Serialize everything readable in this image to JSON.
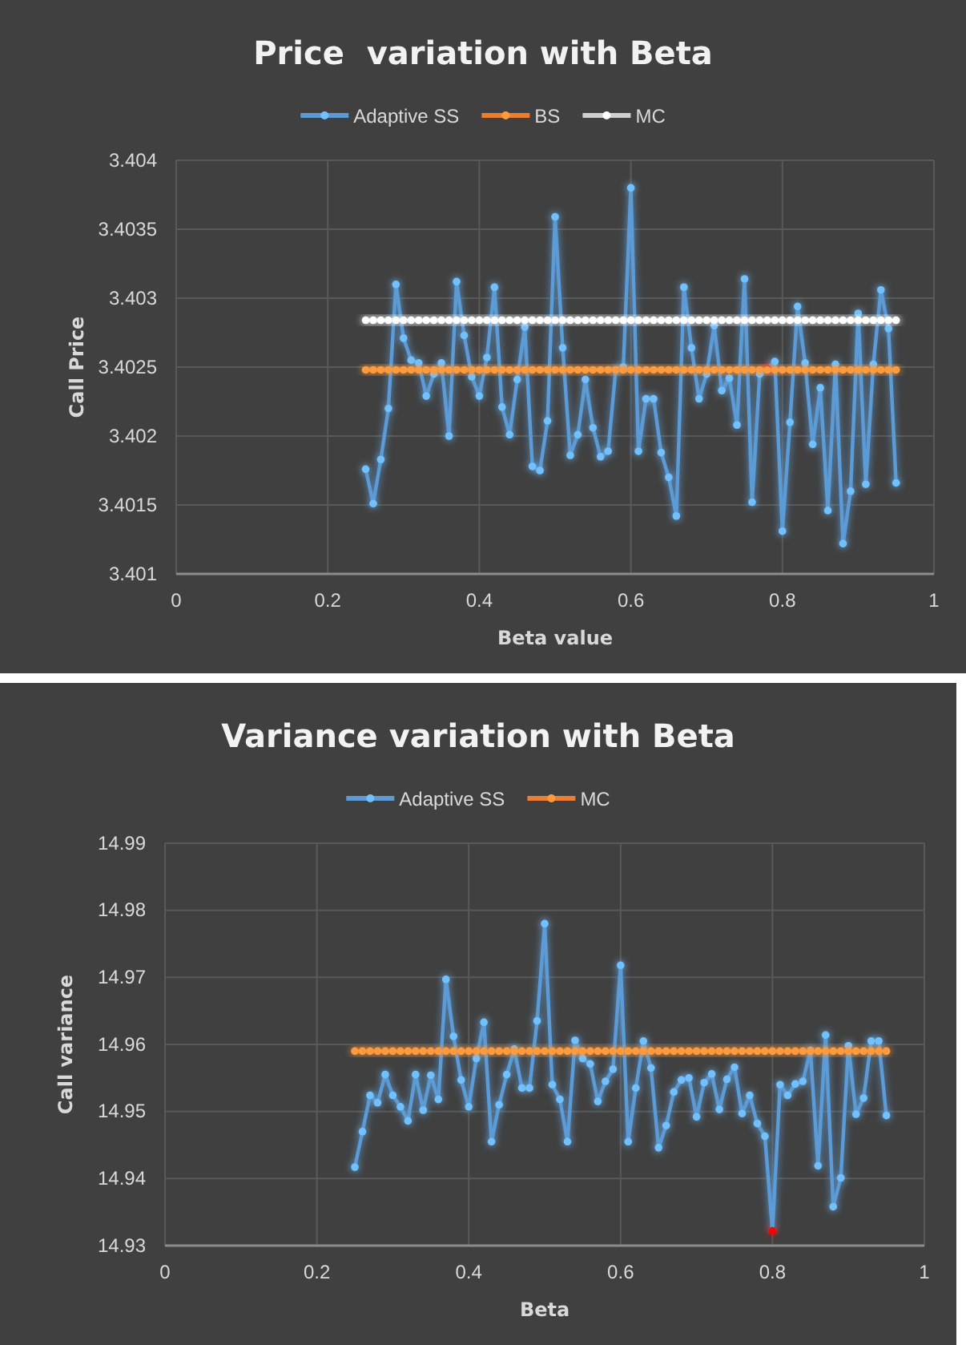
{
  "chart_data": [
    {
      "type": "line",
      "title": "Price  variation with Beta",
      "xlabel": "Beta value",
      "ylabel": "Call Price",
      "legend": "top",
      "grid": true,
      "marker": "circle",
      "line_style": "solid",
      "x": [
        0.25,
        0.26,
        0.27,
        0.28,
        0.29,
        0.3,
        0.31,
        0.32,
        0.33,
        0.34,
        0.35,
        0.36,
        0.37,
        0.38,
        0.39,
        0.4,
        0.41,
        0.42,
        0.43,
        0.44,
        0.45,
        0.46,
        0.47,
        0.48,
        0.49,
        0.5,
        0.51,
        0.52,
        0.53,
        0.54,
        0.55,
        0.56,
        0.57,
        0.58,
        0.59,
        0.6,
        0.61,
        0.62,
        0.63,
        0.64,
        0.65,
        0.66,
        0.67,
        0.68,
        0.69,
        0.7,
        0.71,
        0.72,
        0.73,
        0.74,
        0.75,
        0.76,
        0.77,
        0.78,
        0.79,
        0.8,
        0.81,
        0.82,
        0.83,
        0.84,
        0.85,
        0.86,
        0.87,
        0.88,
        0.89,
        0.9,
        0.91,
        0.92,
        0.93,
        0.94,
        0.95
      ],
      "xlim": [
        0,
        1
      ],
      "xticks": [
        0,
        0.2,
        0.4,
        0.6,
        0.8,
        1
      ],
      "ylim": [
        3.401,
        3.404
      ],
      "yticks": [
        3.401,
        3.4015,
        3.402,
        3.4025,
        3.403,
        3.4035,
        3.404
      ],
      "series": [
        {
          "name": "Adaptive SS",
          "color": "#5b9bd5",
          "values": [
            3.40176,
            3.40151,
            3.40183,
            3.4022,
            3.4031,
            3.40271,
            3.40255,
            3.40253,
            3.40229,
            3.40245,
            3.40253,
            3.402,
            3.40312,
            3.40273,
            3.40243,
            3.40229,
            3.40257,
            3.40308,
            3.40221,
            3.40201,
            3.40241,
            3.40279,
            3.40178,
            3.40175,
            3.40211,
            3.40359,
            3.40264,
            3.40186,
            3.40201,
            3.40241,
            3.40206,
            3.40185,
            3.40189,
            3.40248,
            3.4025,
            3.4038,
            3.40189,
            3.40227,
            3.40227,
            3.40188,
            3.4017,
            3.40142,
            3.40308,
            3.40264,
            3.40227,
            3.40245,
            3.4028,
            3.40233,
            3.40242,
            3.40208,
            3.40314,
            3.40152,
            3.40245,
            3.40249,
            3.40254,
            3.40131,
            3.4021,
            3.40294,
            3.40253,
            3.40194,
            3.40235,
            3.40146,
            3.40252,
            3.40122,
            3.4016,
            3.40289,
            3.40165,
            3.40252,
            3.40306,
            3.40278,
            3.40166
          ],
          "colors": [
            null,
            null,
            null,
            null,
            null,
            null,
            null,
            null,
            null,
            null,
            null,
            null,
            null,
            null,
            null,
            null,
            null,
            null,
            null,
            null,
            null,
            null,
            null,
            null,
            null,
            null,
            null,
            null,
            null,
            null,
            null,
            null,
            null,
            null,
            null,
            null,
            null,
            null,
            null,
            null,
            null,
            null,
            null,
            null,
            null,
            null,
            null,
            null,
            null,
            null,
            null,
            null,
            null,
            "#ff0000",
            null,
            null,
            null,
            null,
            null,
            null,
            null,
            null,
            null,
            null,
            null,
            null,
            null,
            null,
            null,
            null,
            null
          ]
        },
        {
          "name": "BS",
          "color": "#ed7d31",
          "values": [
            3.40248,
            3.40248,
            3.40248,
            3.40248,
            3.40248,
            3.40248,
            3.40248,
            3.40248,
            3.40248,
            3.40248,
            3.40248,
            3.40248,
            3.40248,
            3.40248,
            3.40248,
            3.40248,
            3.40248,
            3.40248,
            3.40248,
            3.40248,
            3.40248,
            3.40248,
            3.40248,
            3.40248,
            3.40248,
            3.40248,
            3.40248,
            3.40248,
            3.40248,
            3.40248,
            3.40248,
            3.40248,
            3.40248,
            3.40248,
            3.40248,
            3.40248,
            3.40248,
            3.40248,
            3.40248,
            3.40248,
            3.40248,
            3.40248,
            3.40248,
            3.40248,
            3.40248,
            3.40248,
            3.40248,
            3.40248,
            3.40248,
            3.40248,
            3.40248,
            3.40248,
            3.40248,
            3.40248,
            3.40248,
            3.40248,
            3.40248,
            3.40248,
            3.40248,
            3.40248,
            3.40248,
            3.40248,
            3.40248,
            3.40248,
            3.40248,
            3.40248,
            3.40248,
            3.40248,
            3.40248,
            3.40248,
            3.40248
          ]
        },
        {
          "name": "MC",
          "color": "#d0d0d0",
          "values": [
            3.40284,
            3.40284,
            3.40284,
            3.40284,
            3.40284,
            3.40284,
            3.40284,
            3.40284,
            3.40284,
            3.40284,
            3.40284,
            3.40284,
            3.40284,
            3.40284,
            3.40284,
            3.40284,
            3.40284,
            3.40284,
            3.40284,
            3.40284,
            3.40284,
            3.40284,
            3.40284,
            3.40284,
            3.40284,
            3.40284,
            3.40284,
            3.40284,
            3.40284,
            3.40284,
            3.40284,
            3.40284,
            3.40284,
            3.40284,
            3.40284,
            3.40284,
            3.40284,
            3.40284,
            3.40284,
            3.40284,
            3.40284,
            3.40284,
            3.40284,
            3.40284,
            3.40284,
            3.40284,
            3.40284,
            3.40284,
            3.40284,
            3.40284,
            3.40284,
            3.40284,
            3.40284,
            3.40284,
            3.40284,
            3.40284,
            3.40284,
            3.40284,
            3.40284,
            3.40284,
            3.40284,
            3.40284,
            3.40284,
            3.40284,
            3.40284,
            3.40284,
            3.40284,
            3.40284,
            3.40284,
            3.40284,
            3.40284
          ]
        }
      ]
    },
    {
      "type": "line",
      "title": "Variance variation with Beta",
      "xlabel": "Beta",
      "ylabel": "Call variance",
      "legend": "top",
      "grid": true,
      "marker": "circle",
      "line_style": "solid",
      "x": [
        0.25,
        0.26,
        0.27,
        0.28,
        0.29,
        0.3,
        0.31,
        0.32,
        0.33,
        0.34,
        0.35,
        0.36,
        0.37,
        0.38,
        0.39,
        0.4,
        0.41,
        0.42,
        0.43,
        0.44,
        0.45,
        0.46,
        0.47,
        0.48,
        0.49,
        0.5,
        0.51,
        0.52,
        0.53,
        0.54,
        0.55,
        0.56,
        0.57,
        0.58,
        0.59,
        0.6,
        0.61,
        0.62,
        0.63,
        0.64,
        0.65,
        0.66,
        0.67,
        0.68,
        0.69,
        0.7,
        0.71,
        0.72,
        0.73,
        0.74,
        0.75,
        0.76,
        0.77,
        0.78,
        0.79,
        0.8,
        0.81,
        0.82,
        0.83,
        0.84,
        0.85,
        0.86,
        0.87,
        0.88,
        0.89,
        0.9,
        0.91,
        0.92,
        0.93,
        0.94,
        0.95
      ],
      "xlim": [
        0,
        1
      ],
      "xticks": [
        0,
        0.2,
        0.4,
        0.6,
        0.8,
        1
      ],
      "ylim": [
        14.93,
        14.99
      ],
      "yticks": [
        14.93,
        14.94,
        14.95,
        14.96,
        14.97,
        14.98,
        14.99
      ],
      "series": [
        {
          "name": "Adaptive SS",
          "color": "#5b9bd5",
          "values": [
            14.9417,
            14.947,
            14.9524,
            14.9513,
            14.9555,
            14.9524,
            14.9507,
            14.9486,
            14.9555,
            14.9502,
            14.9554,
            14.9518,
            14.9697,
            14.9612,
            14.9547,
            14.9507,
            14.9579,
            14.9633,
            14.9455,
            14.951,
            14.9555,
            14.9593,
            14.9535,
            14.9535,
            14.9635,
            14.978,
            14.954,
            14.9518,
            14.9455,
            14.9606,
            14.9579,
            14.9571,
            14.9515,
            14.9545,
            14.9563,
            14.9718,
            14.9455,
            14.9535,
            14.9605,
            14.9565,
            14.9446,
            14.9479,
            14.9529,
            14.9547,
            14.955,
            14.9492,
            14.9543,
            14.9556,
            14.9503,
            14.9548,
            14.9566,
            14.9497,
            14.9524,
            14.9482,
            14.9463,
            14.9322,
            14.954,
            14.9524,
            14.9541,
            14.9545,
            14.9591,
            14.9419,
            14.9614,
            14.9358,
            14.9401,
            14.9598,
            14.9496,
            14.952,
            14.9605,
            14.9605,
            14.9494
          ],
          "colors": [
            null,
            null,
            null,
            null,
            null,
            null,
            null,
            null,
            null,
            null,
            null,
            null,
            null,
            null,
            null,
            null,
            null,
            null,
            null,
            null,
            null,
            null,
            null,
            null,
            null,
            null,
            null,
            null,
            null,
            null,
            null,
            null,
            null,
            null,
            null,
            null,
            null,
            null,
            null,
            null,
            null,
            null,
            null,
            null,
            null,
            null,
            null,
            null,
            null,
            null,
            null,
            null,
            null,
            null,
            null,
            "#ff0000",
            null,
            null,
            null,
            null,
            null,
            null,
            null,
            null,
            null,
            null,
            null,
            null,
            null,
            null,
            null
          ]
        },
        {
          "name": "MC",
          "color": "#ed7d31",
          "values": [
            14.959,
            14.959,
            14.959,
            14.959,
            14.959,
            14.959,
            14.959,
            14.959,
            14.959,
            14.959,
            14.959,
            14.959,
            14.959,
            14.959,
            14.959,
            14.959,
            14.959,
            14.959,
            14.959,
            14.959,
            14.959,
            14.959,
            14.959,
            14.959,
            14.959,
            14.959,
            14.959,
            14.959,
            14.959,
            14.959,
            14.959,
            14.959,
            14.959,
            14.959,
            14.959,
            14.959,
            14.959,
            14.959,
            14.959,
            14.959,
            14.959,
            14.959,
            14.959,
            14.959,
            14.959,
            14.959,
            14.959,
            14.959,
            14.959,
            14.959,
            14.959,
            14.959,
            14.959,
            14.959,
            14.959,
            14.959,
            14.959,
            14.959,
            14.959,
            14.959,
            14.959,
            14.959,
            14.959,
            14.959,
            14.959,
            14.959,
            14.959,
            14.959,
            14.959,
            14.959,
            14.959
          ]
        }
      ]
    }
  ]
}
